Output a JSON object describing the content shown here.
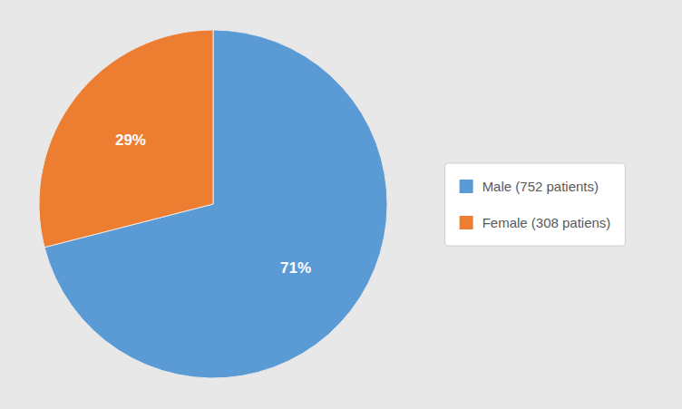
{
  "chart_data": {
    "type": "pie",
    "categories": [
      "Male (752 patients)",
      "Female (308 patiens)"
    ],
    "values": [
      71,
      29
    ],
    "value_labels": [
      "71%",
      "29%"
    ],
    "colors": [
      "#5B9BD5",
      "#ED7D31"
    ],
    "data_labels": true,
    "legend": "right"
  }
}
